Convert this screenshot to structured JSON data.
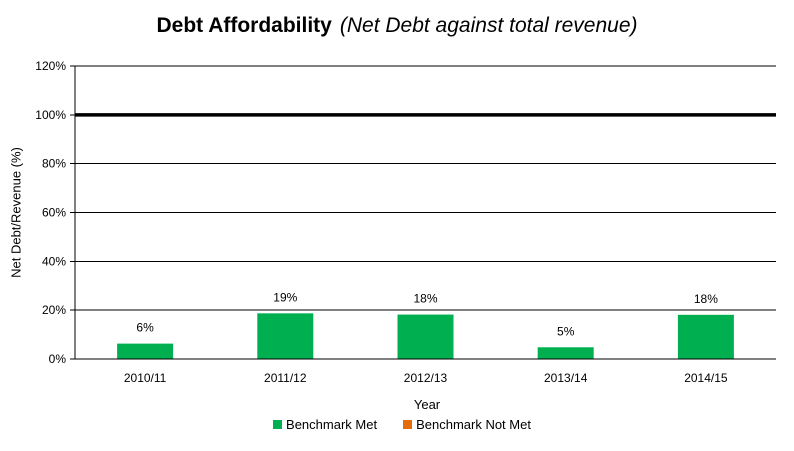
{
  "chart_data": {
    "type": "bar",
    "title": "Debt Affordability",
    "subtitle": "(Net Debt against total revenue)",
    "xlabel": "Year",
    "ylabel": "Net Debt/Revenue (%)",
    "categories": [
      "2010/11",
      "2011/12",
      "2012/13",
      "2013/14",
      "2014/15"
    ],
    "series": [
      {
        "name": "Benchmark Met",
        "color": "#00b050",
        "values": [
          6.3,
          18.7,
          18.2,
          4.8,
          18.1
        ],
        "labels": [
          "6%",
          "19%",
          "18%",
          "5%",
          "18%"
        ]
      },
      {
        "name": "Benchmark Not Met",
        "color": "#e46c0a",
        "values": [
          0,
          0,
          0,
          0,
          0
        ]
      }
    ],
    "ylim": [
      0,
      120
    ],
    "yticks": [
      0,
      20,
      40,
      60,
      80,
      100,
      120
    ],
    "ytick_labels": [
      "0%",
      "20%",
      "40%",
      "60%",
      "80%",
      "100%",
      "120%"
    ],
    "benchmark_line": 100,
    "grid": true,
    "legend_position": "bottom"
  }
}
